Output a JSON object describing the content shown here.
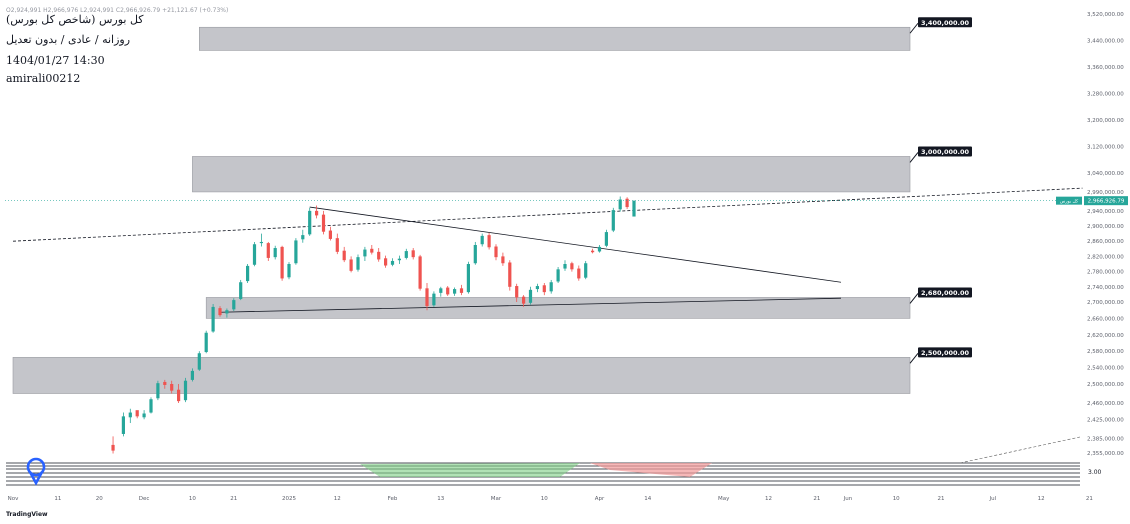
{
  "header": {
    "ohlc_line": "O2,924,991  H2,966,976  L2,924,991  C2,966,926.79  +21,121.67 (+0.73%)",
    "title": "کل بورس (شاخص کل بورس)",
    "subtitle": "روزانه / عادی / بدون تعدیل",
    "datetime": "1404/01/27 14:30",
    "user": "amirali00212"
  },
  "brand": "TradingView",
  "colors": {
    "up": "#26a69a",
    "down": "#ef5350",
    "zone": "#c4c5ca",
    "label_bg": "#131722",
    "price_tag": "#26a69a",
    "green_fill": "#7dcf84",
    "red_fill": "#f29a9a"
  },
  "chart_data": {
    "type": "candlestick",
    "title": "",
    "y_axis": {
      "ticks": [
        3520000,
        3440000,
        3360000,
        3280000,
        3200000,
        3120000,
        3040000,
        2990000,
        2940000,
        2900000,
        2860000,
        2820000,
        2780000,
        2740000,
        2700000,
        2660000,
        2620000,
        2580000,
        2540000,
        2500000,
        2460000,
        2425000,
        2385000,
        2355000
      ],
      "tick_labels": [
        "3,520,000.00",
        "3,440,000.00",
        "3,360,000.00",
        "3,280,000.00",
        "3,200,000.00",
        "3,120,000.00",
        "3,040,000.00",
        "2,990,000.00",
        "2,940,000.00",
        "2,900,000.00",
        "2,860,000.00",
        "2,820,000.00",
        "2,780,000.00",
        "2,740,000.00",
        "2,700,000.00",
        "2,660,000.00",
        "2,620,000.00",
        "2,580,000.00",
        "2,540,000.00",
        "2,500,000.00",
        "2,460,000.00",
        "2,425,000.00",
        "2,385,000.00",
        "2,355,000.00"
      ]
    },
    "x_axis": {
      "tick_labels": [
        "Nov",
        "11",
        "20",
        "Dec",
        "10",
        "21",
        "2025",
        "12",
        "Feb",
        "13",
        "Mar",
        "10",
        "Apr",
        "14",
        "May",
        "12",
        "21",
        "Jun",
        "10",
        "21",
        "Jul",
        "12",
        "21"
      ],
      "tick_bar": [
        0,
        13,
        25,
        38,
        52,
        64,
        80,
        94,
        110,
        124,
        140,
        154,
        170,
        184,
        206,
        219,
        233,
        242,
        256,
        269,
        284,
        298,
        312
      ]
    },
    "current_price": {
      "value": 2966926.79,
      "label": "2,966,926.79",
      "tag": "کل بورس"
    },
    "zones": [
      {
        "from_bar": 54,
        "to_bar": 262,
        "low": 3410000,
        "high": 3480000,
        "label": "3,400,000.00"
      },
      {
        "from_bar": 52,
        "to_bar": 264,
        "low": 2990000,
        "high": 3090000,
        "label": "3,000,000.00"
      },
      {
        "from_bar": 56,
        "to_bar": 260,
        "low": 2660000,
        "high": 2712000,
        "label": "2,680,000.00"
      },
      {
        "from_bar": 0,
        "to_bar": 264,
        "low": 2480000,
        "high": 2565000,
        "label": "2,500,000.00"
      }
    ],
    "trendlines": [
      {
        "from": [
          0,
          2860000
        ],
        "to": [
          310,
          3000000
        ],
        "style": "dashed"
      },
      {
        "from": [
          86,
          2950000
        ],
        "to": [
          240,
          2752000
        ],
        "style": "solid"
      },
      {
        "from": [
          60,
          2675000
        ],
        "to": [
          240,
          2710000
        ],
        "style": "solid"
      }
    ],
    "candles": [
      [
        29,
        2372000,
        2390000,
        2354000,
        2360000
      ],
      [
        32,
        2395000,
        2440000,
        2390000,
        2432000
      ],
      [
        34,
        2430000,
        2448000,
        2418000,
        2440000
      ],
      [
        36,
        2445000,
        2442000,
        2428000,
        2432000
      ],
      [
        38,
        2430000,
        2445000,
        2426000,
        2438000
      ],
      [
        40,
        2440000,
        2472000,
        2438000,
        2468000
      ],
      [
        42,
        2470000,
        2508000,
        2466000,
        2502000
      ],
      [
        44,
        2505000,
        2510000,
        2490000,
        2498000
      ],
      [
        46,
        2500000,
        2508000,
        2480000,
        2486000
      ],
      [
        48,
        2488000,
        2500000,
        2460000,
        2464000
      ],
      [
        50,
        2466000,
        2515000,
        2462000,
        2508000
      ],
      [
        52,
        2510000,
        2538000,
        2506000,
        2532000
      ],
      [
        54,
        2535000,
        2580000,
        2532000,
        2575000
      ],
      [
        56,
        2578000,
        2630000,
        2575000,
        2625000
      ],
      [
        58,
        2628000,
        2695000,
        2625000,
        2688000
      ],
      [
        60,
        2685000,
        2690000,
        2664000,
        2668000
      ],
      [
        62,
        2672000,
        2684000,
        2662000,
        2680000
      ],
      [
        64,
        2682000,
        2710000,
        2678000,
        2705000
      ],
      [
        66,
        2708000,
        2758000,
        2705000,
        2752000
      ],
      [
        68,
        2755000,
        2800000,
        2750000,
        2795000
      ],
      [
        70,
        2798000,
        2858000,
        2794000,
        2852000
      ],
      [
        72,
        2855000,
        2880000,
        2846000,
        2858000
      ],
      [
        74,
        2855000,
        2858000,
        2808000,
        2816000
      ],
      [
        76,
        2818000,
        2848000,
        2812000,
        2842000
      ],
      [
        78,
        2845000,
        2848000,
        2756000,
        2762000
      ],
      [
        80,
        2765000,
        2805000,
        2760000,
        2800000
      ],
      [
        82,
        2802000,
        2868000,
        2798000,
        2862000
      ],
      [
        84,
        2865000,
        2890000,
        2856000,
        2876000
      ],
      [
        86,
        2878000,
        2948000,
        2874000,
        2940000
      ],
      [
        88,
        2940000,
        2954000,
        2920000,
        2928000
      ],
      [
        90,
        2930000,
        2940000,
        2878000,
        2885000
      ],
      [
        92,
        2888000,
        2898000,
        2862000,
        2866000
      ],
      [
        94,
        2868000,
        2880000,
        2826000,
        2832000
      ],
      [
        96,
        2835000,
        2845000,
        2805000,
        2810000
      ],
      [
        98,
        2812000,
        2820000,
        2778000,
        2782000
      ],
      [
        100,
        2785000,
        2825000,
        2780000,
        2818000
      ],
      [
        102,
        2820000,
        2845000,
        2808000,
        2838000
      ],
      [
        104,
        2840000,
        2850000,
        2825000,
        2830000
      ],
      [
        106,
        2832000,
        2842000,
        2806000,
        2812000
      ],
      [
        108,
        2815000,
        2822000,
        2790000,
        2796000
      ],
      [
        110,
        2798000,
        2815000,
        2794000,
        2808000
      ],
      [
        112,
        2810000,
        2822000,
        2800000,
        2814000
      ],
      [
        114,
        2816000,
        2840000,
        2812000,
        2834000
      ],
      [
        116,
        2836000,
        2842000,
        2812000,
        2818000
      ],
      [
        118,
        2820000,
        2824000,
        2730000,
        2735000
      ],
      [
        120,
        2736000,
        2750000,
        2680000,
        2690000
      ],
      [
        122,
        2692000,
        2728000,
        2688000,
        2722000
      ],
      [
        124,
        2724000,
        2740000,
        2714000,
        2736000
      ],
      [
        126,
        2738000,
        2742000,
        2716000,
        2720000
      ],
      [
        128,
        2722000,
        2738000,
        2716000,
        2734000
      ],
      [
        130,
        2736000,
        2745000,
        2718000,
        2724000
      ],
      [
        132,
        2726000,
        2806000,
        2722000,
        2800000
      ],
      [
        134,
        2802000,
        2858000,
        2798000,
        2850000
      ],
      [
        136,
        2852000,
        2880000,
        2846000,
        2874000
      ],
      [
        138,
        2876000,
        2882000,
        2838000,
        2844000
      ],
      [
        140,
        2846000,
        2852000,
        2810000,
        2818000
      ],
      [
        142,
        2820000,
        2830000,
        2795000,
        2802000
      ],
      [
        144,
        2804000,
        2810000,
        2730000,
        2740000
      ],
      [
        146,
        2742000,
        2748000,
        2700000,
        2712000
      ],
      [
        148,
        2714000,
        2718000,
        2688000,
        2696000
      ],
      [
        150,
        2698000,
        2740000,
        2694000,
        2732000
      ],
      [
        152,
        2734000,
        2748000,
        2726000,
        2742000
      ],
      [
        154,
        2744000,
        2750000,
        2718000,
        2726000
      ],
      [
        156,
        2728000,
        2758000,
        2722000,
        2752000
      ],
      [
        158,
        2754000,
        2792000,
        2750000,
        2786000
      ],
      [
        160,
        2788000,
        2810000,
        2782000,
        2800000
      ],
      [
        162,
        2802000,
        2806000,
        2780000,
        2786000
      ],
      [
        164,
        2788000,
        2796000,
        2756000,
        2762000
      ],
      [
        166,
        2764000,
        2808000,
        2760000,
        2802000
      ],
      [
        168,
        2835000,
        2840000,
        2828000,
        2831000
      ],
      [
        170,
        2833000,
        2850000,
        2830000,
        2845000
      ],
      [
        172,
        2848000,
        2890000,
        2844000,
        2884000
      ],
      [
        174,
        2888000,
        2948000,
        2884000,
        2942000
      ],
      [
        176,
        2944000,
        2978000,
        2938000,
        2970000
      ],
      [
        178,
        2972000,
        2976000,
        2945000,
        2950000
      ],
      [
        180,
        2924991,
        2966976,
        2924991,
        2966926.79
      ]
    ]
  }
}
